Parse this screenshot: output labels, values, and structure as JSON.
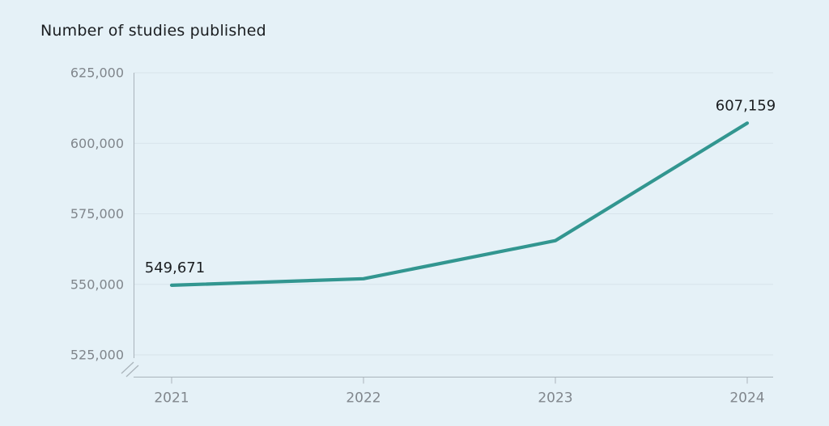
{
  "chart_data": {
    "type": "line",
    "title": "Number of studies published",
    "x": [
      "2021",
      "2022",
      "2023",
      "2024"
    ],
    "series": [
      {
        "name": "Number of studies published",
        "values": [
          549671,
          552000,
          565500,
          607159
        ]
      }
    ],
    "point_labels": [
      {
        "x": "2021",
        "text": "549,671"
      },
      {
        "x": "2024",
        "text": "607,159"
      }
    ],
    "ylim": [
      525000,
      625000
    ],
    "ytick_values": [
      525000,
      550000,
      575000,
      600000,
      625000
    ],
    "ytick_labels": [
      "525,000",
      "550,000",
      "575,000",
      "600,000",
      "625,000"
    ],
    "xtick_labels": [
      "2021",
      "2022",
      "2023",
      "2024"
    ],
    "grid": true,
    "legend": false,
    "axis_break": true,
    "colors": {
      "line": "#329690",
      "background": "#e5f1f7",
      "grid": "#d7e3ea",
      "axis": "#aab4bb",
      "tick_text": "#80868c",
      "label_text": "#1b1e21"
    }
  }
}
